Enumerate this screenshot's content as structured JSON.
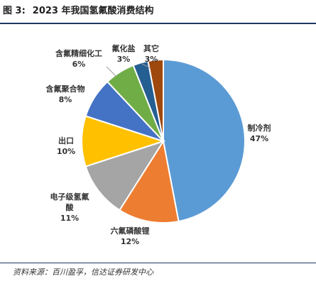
{
  "figure": {
    "title_prefix": "图 3:",
    "title": "2023 年我国氢氟酸消费结构",
    "source": "资料来源：百川盈孚，信达证券研发中心"
  },
  "chart_data": {
    "type": "pie",
    "title": "2023 年我国氢氟酸消费结构",
    "categories": [
      "制冷剂",
      "六氟磷酸锂",
      "电子级氢氟酸",
      "出口",
      "含氟聚合物",
      "含氟精细化工",
      "氟化盐",
      "其它"
    ],
    "values": [
      47,
      12,
      11,
      10,
      8,
      6,
      3,
      3
    ],
    "percent_labels": [
      "47%",
      "12%",
      "11%",
      "10%",
      "8%",
      "6%",
      "3%",
      "3%"
    ],
    "colors": [
      "#5b9bd5",
      "#ed7d31",
      "#a5a5a5",
      "#ffc000",
      "#4472c4",
      "#70ad47",
      "#255e91",
      "#9e480e"
    ],
    "start_angle": "12 o'clock",
    "direction": "clockwise"
  }
}
